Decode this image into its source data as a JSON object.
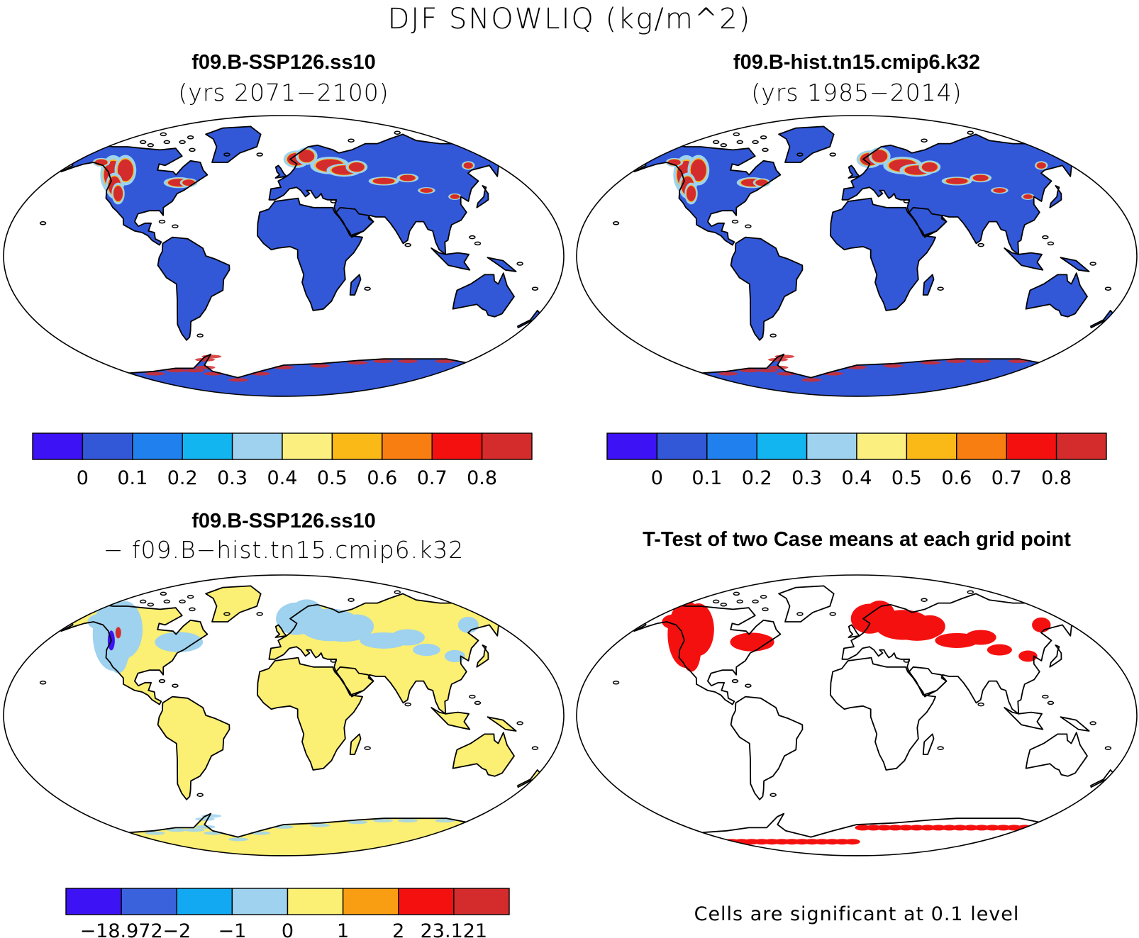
{
  "figure": {
    "title": "DJF SNOWLIQ (kg/m^2)"
  },
  "panels": {
    "future": {
      "title": "f09.B-SSP126.ss10",
      "subtitle": "(yrs 2071−2100)"
    },
    "historical": {
      "title": "f09.B-hist.tn15.cmip6.k32",
      "subtitle": "(yrs 1985−2014)"
    },
    "difference": {
      "title": "f09.B-SSP126.ss10",
      "subtitle": "− f09.B−hist.tn15.cmip6.k32"
    },
    "ttest": {
      "title": "T-Test of two Case means at each grid point",
      "note": "Cells are significant at 0.1 level"
    }
  },
  "colorbars": {
    "levels": {
      "colors": [
        "#3d12f5",
        "#3258d8",
        "#1f80ee",
        "#12b5f0",
        "#9ed2ee",
        "#fbef80",
        "#fbb918",
        "#f97e12",
        "#f51010",
        "#d42c2c"
      ],
      "labels": [
        "0",
        "0.1",
        "0.2",
        "0.3",
        "0.4",
        "0.5",
        "0.6",
        "0.7",
        "0.8"
      ]
    },
    "difference": {
      "colors": [
        "#3d12f5",
        "#3a62dc",
        "#12a8f2",
        "#9ed2ee",
        "#fbef74",
        "#f99d12",
        "#f51010",
        "#d42c2c"
      ],
      "labels": [
        "−18.972",
        "−2",
        "−1",
        "0",
        "1",
        "2",
        "23.121"
      ]
    }
  },
  "palette": {
    "land_low": "#3258d8",
    "diff_zero": "#fbef74",
    "diff_neg": "#9ed2ee",
    "significant": "#f51010",
    "outline": "#000000",
    "background": "#ffffff"
  }
}
